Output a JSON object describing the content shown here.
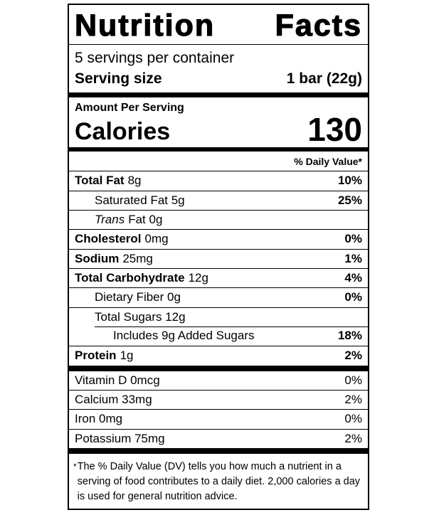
{
  "colors": {
    "text": "#000000",
    "background": "#ffffff",
    "rule": "#000000"
  },
  "label": {
    "title": {
      "word_left": "Nutrition",
      "word_right": "Facts"
    },
    "servings_per_container": "5 servings per container",
    "serving_size": {
      "label": "Serving size",
      "value": "1 bar (22g)"
    },
    "amount_per_serving": "Amount Per Serving",
    "calories": {
      "label": "Calories",
      "value": "130"
    },
    "daily_value_header": "% Daily Value*",
    "nutrients": {
      "total_fat": {
        "name": "Total Fat",
        "amount": "8g",
        "percent": "10%"
      },
      "saturated_fat": {
        "name": "Saturated Fat 5g",
        "percent": "25%"
      },
      "trans_fat": {
        "italic": "Trans",
        "rest": "Fat 0g"
      },
      "cholesterol": {
        "name": "Cholesterol",
        "amount": "0mg",
        "percent": "0%"
      },
      "sodium": {
        "name": "Sodium",
        "amount": "25mg",
        "percent": "1%"
      },
      "total_carbohydrate": {
        "name": "Total Carbohydrate",
        "amount": "12g",
        "percent": "4%"
      },
      "dietary_fiber": {
        "name": "Dietary Fiber 0g",
        "percent": "0%"
      },
      "total_sugars": {
        "name": "Total Sugars 12g"
      },
      "added_sugars": {
        "name": "Includes 9g Added Sugars",
        "percent": "18%"
      },
      "protein": {
        "name": "Protein",
        "amount": "1g",
        "percent": "2%"
      }
    },
    "micronutrients": {
      "vitamin_d": {
        "name": "Vitamin D 0mcg",
        "percent": "0%"
      },
      "calcium": {
        "name": "Calcium 33mg",
        "percent": "2%"
      },
      "iron": {
        "name": "Iron 0mg",
        "percent": "0%"
      },
      "potassium": {
        "name": "Potassium 75mg",
        "percent": "2%"
      }
    },
    "footnote": {
      "marker": "*",
      "text": "The % Daily Value (DV) tells you how much a nutrient in a serving of food contributes to a daily diet. 2,000 calories a day is used for general nutrition advice."
    }
  }
}
